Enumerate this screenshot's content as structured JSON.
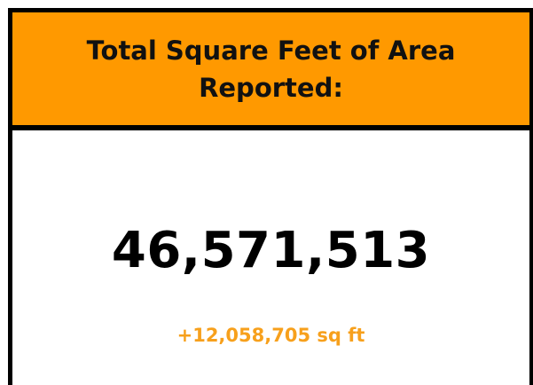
{
  "header": {
    "title": "Total Square Feet of Area Reported:"
  },
  "metric": {
    "value": "46,571,513",
    "change": "+12,058,705 sq ft"
  }
}
